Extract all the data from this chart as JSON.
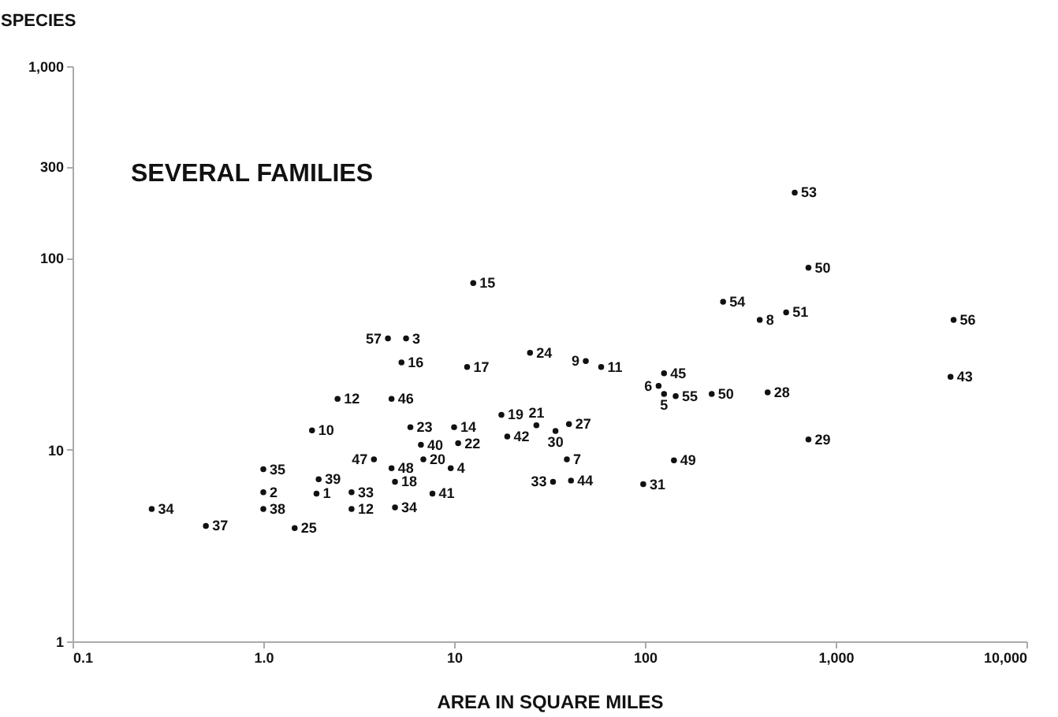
{
  "chart_data": {
    "type": "scatter",
    "title": "SEVERAL FAMILIES",
    "xlabel": "AREA IN SQUARE MILES",
    "ylabel": "SPECIES",
    "log": "xy",
    "grid": false,
    "marker": "circle",
    "xlim": [
      0.1,
      10000
    ],
    "ylim": [
      1,
      1000
    ],
    "xticks": [
      0.1,
      {
        "value": 1,
        "label": "1.0"
      },
      10,
      100,
      {
        "value": 1000,
        "label": "1,000"
      },
      {
        "value": 10000,
        "label": "10,000"
      }
    ],
    "yticks": [
      1,
      10,
      100,
      300,
      {
        "value": 1000,
        "label": "1,000"
      }
    ],
    "series": [
      {
        "color": "#111111",
        "x": [
          0.26,
          0.5,
          1.0,
          1.0,
          1.0,
          1.46,
          1.9,
          1.95,
          2.9,
          2.9,
          1.8,
          2.45,
          3.8,
          4.7,
          4.9,
          4.9,
          5.9,
          4.7,
          5.3,
          4.5,
          5.6,
          6.7,
          6.9,
          9.6,
          7.7,
          10,
          10.5,
          11.7,
          17.7,
          19,
          12.6,
          25,
          27,
          34,
          40,
          39,
          33,
          41,
          49,
          59,
          126,
          118,
          126,
          145,
          224,
          440,
          720,
          142,
          98,
          4000,
          400,
          4150,
          550,
          257,
          720,
          610
        ],
        "values": [
          4.9,
          4.0,
          7.9,
          6.0,
          4.9,
          3.9,
          5.9,
          7.0,
          6.0,
          4.9,
          12.6,
          18.4,
          8.9,
          8.0,
          5.0,
          6.8,
          13.1,
          18.4,
          28.5,
          38,
          38,
          10.6,
          8.9,
          8.0,
          5.9,
          13.1,
          10.8,
          27,
          15.2,
          11.7,
          74,
          32,
          13.4,
          12.5,
          13.6,
          8.9,
          6.8,
          6.9,
          29,
          27,
          25,
          21.5,
          19.5,
          19,
          19.5,
          19.9,
          11.3,
          8.8,
          6.6,
          24,
          47.5,
          47.5,
          52,
          59,
          89,
          219
        ]
      }
    ],
    "annotations": [
      {
        "text": "34",
        "x": 0.26,
        "y": 4.9
      },
      {
        "text": "37",
        "x": 0.5,
        "y": 4.0
      },
      {
        "text": "35",
        "x": 1.0,
        "y": 7.9
      },
      {
        "text": "2",
        "x": 1.0,
        "y": 6.0
      },
      {
        "text": "38",
        "x": 1.0,
        "y": 4.9
      },
      {
        "text": "25",
        "x": 1.46,
        "y": 3.9
      },
      {
        "text": "1",
        "x": 1.9,
        "y": 5.9
      },
      {
        "text": "39",
        "x": 1.95,
        "y": 7.0
      },
      {
        "text": "33",
        "x": 2.9,
        "y": 6.0
      },
      {
        "text": "12",
        "x": 2.9,
        "y": 4.9
      },
      {
        "text": "10",
        "x": 1.8,
        "y": 12.6
      },
      {
        "text": "12",
        "x": 2.45,
        "y": 18.4
      },
      {
        "text": "47",
        "x": 3.8,
        "y": 8.9
      },
      {
        "text": "48",
        "x": 4.7,
        "y": 8.0
      },
      {
        "text": "34",
        "x": 4.9,
        "y": 5.0
      },
      {
        "text": "18",
        "x": 4.9,
        "y": 6.8
      },
      {
        "text": "23",
        "x": 5.9,
        "y": 13.1
      },
      {
        "text": "46",
        "x": 4.7,
        "y": 18.4
      },
      {
        "text": "16",
        "x": 5.3,
        "y": 28.5
      },
      {
        "text": "57",
        "x": 4.5,
        "y": 38
      },
      {
        "text": "3",
        "x": 5.6,
        "y": 38
      },
      {
        "text": "40",
        "x": 6.7,
        "y": 10.6
      },
      {
        "text": "20",
        "x": 6.9,
        "y": 8.9
      },
      {
        "text": "4",
        "x": 9.6,
        "y": 8.0
      },
      {
        "text": "41",
        "x": 7.7,
        "y": 5.9
      },
      {
        "text": "14",
        "x": 10,
        "y": 13.1
      },
      {
        "text": "22",
        "x": 10.5,
        "y": 10.8
      },
      {
        "text": "17",
        "x": 11.7,
        "y": 27
      },
      {
        "text": "19",
        "x": 17.7,
        "y": 15.2
      },
      {
        "text": "42",
        "x": 19,
        "y": 11.7
      },
      {
        "text": "15",
        "x": 12.6,
        "y": 74
      },
      {
        "text": "24",
        "x": 25,
        "y": 32
      },
      {
        "text": "21",
        "x": 27,
        "y": 13.4
      },
      {
        "text": "30",
        "x": 34,
        "y": 12.5
      },
      {
        "text": "27",
        "x": 40,
        "y": 13.6
      },
      {
        "text": "7",
        "x": 39,
        "y": 8.9
      },
      {
        "text": "33",
        "x": 33,
        "y": 6.8
      },
      {
        "text": "44",
        "x": 41,
        "y": 6.9
      },
      {
        "text": "9",
        "x": 49,
        "y": 29
      },
      {
        "text": "11",
        "x": 59,
        "y": 27
      },
      {
        "text": "45",
        "x": 126,
        "y": 25
      },
      {
        "text": "6",
        "x": 118,
        "y": 21.5
      },
      {
        "text": "5",
        "x": 126,
        "y": 19.5
      },
      {
        "text": "55",
        "x": 145,
        "y": 19
      },
      {
        "text": "50",
        "x": 224,
        "y": 19.5
      },
      {
        "text": "28",
        "x": 440,
        "y": 19.9
      },
      {
        "text": "29",
        "x": 720,
        "y": 11.3
      },
      {
        "text": "49",
        "x": 142,
        "y": 8.8
      },
      {
        "text": "31",
        "x": 98,
        "y": 6.6
      },
      {
        "text": "43",
        "x": 4000,
        "y": 24
      },
      {
        "text": "8",
        "x": 400,
        "y": 47.5
      },
      {
        "text": "56",
        "x": 4150,
        "y": 47.5
      },
      {
        "text": "51",
        "x": 550,
        "y": 52
      },
      {
        "text": "54",
        "x": 257,
        "y": 59
      },
      {
        "text": "50",
        "x": 720,
        "y": 89
      },
      {
        "text": "53",
        "x": 610,
        "y": 219
      }
    ]
  }
}
